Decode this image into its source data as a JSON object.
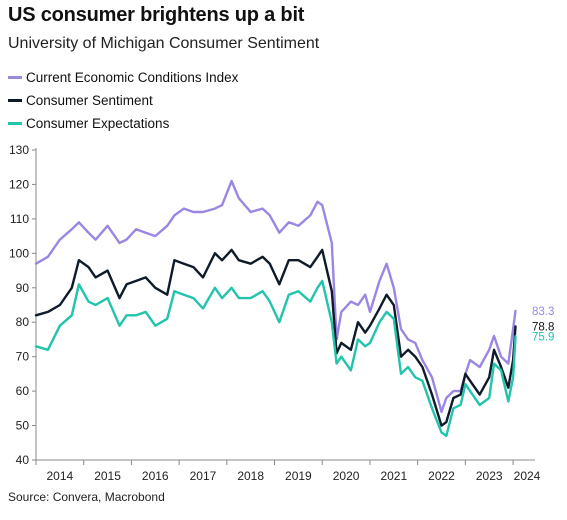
{
  "title": "US consumer brightens up a bit",
  "subtitle": "University of Michigan Consumer Sentiment",
  "source": "Source: Convera, Macrobond",
  "chart_data": {
    "type": "line",
    "title": "US consumer brightens up a bit",
    "subtitle": "University of Michigan Consumer Sentiment",
    "ylim": [
      40,
      130
    ],
    "yticks": [
      40,
      50,
      60,
      70,
      80,
      90,
      100,
      110,
      120,
      130
    ],
    "xlim": [
      2014.0,
      2024.25
    ],
    "xticks": [
      "2014",
      "2015",
      "2016",
      "2017",
      "2018",
      "2019",
      "2020",
      "2021",
      "2022",
      "2023",
      "2024"
    ],
    "grid": false,
    "legend": "top-left",
    "series": [
      {
        "name": "Current Economic Conditions Index",
        "color": "#9b86e3",
        "end_label": "83.3",
        "points": [
          [
            2014.0,
            97
          ],
          [
            2014.25,
            99
          ],
          [
            2014.5,
            104
          ],
          [
            2014.75,
            107
          ],
          [
            2014.9,
            109
          ],
          [
            2015.1,
            106
          ],
          [
            2015.25,
            104
          ],
          [
            2015.5,
            108
          ],
          [
            2015.75,
            103
          ],
          [
            2015.9,
            104
          ],
          [
            2016.1,
            107
          ],
          [
            2016.3,
            106
          ],
          [
            2016.5,
            105
          ],
          [
            2016.75,
            108
          ],
          [
            2016.9,
            111
          ],
          [
            2017.1,
            113
          ],
          [
            2017.3,
            112
          ],
          [
            2017.5,
            112
          ],
          [
            2017.75,
            113
          ],
          [
            2017.9,
            114
          ],
          [
            2018.1,
            121
          ],
          [
            2018.25,
            116
          ],
          [
            2018.5,
            112
          ],
          [
            2018.75,
            113
          ],
          [
            2018.9,
            111
          ],
          [
            2019.1,
            106
          ],
          [
            2019.3,
            109
          ],
          [
            2019.5,
            108
          ],
          [
            2019.75,
            111
          ],
          [
            2019.9,
            115
          ],
          [
            2020.0,
            114
          ],
          [
            2020.2,
            103
          ],
          [
            2020.3,
            75
          ],
          [
            2020.4,
            83
          ],
          [
            2020.6,
            86
          ],
          [
            2020.75,
            85
          ],
          [
            2020.9,
            88
          ],
          [
            2021.0,
            83
          ],
          [
            2021.2,
            92
          ],
          [
            2021.35,
            97
          ],
          [
            2021.5,
            90
          ],
          [
            2021.65,
            78
          ],
          [
            2021.8,
            75
          ],
          [
            2021.95,
            74
          ],
          [
            2022.1,
            69
          ],
          [
            2022.3,
            64
          ],
          [
            2022.5,
            54
          ],
          [
            2022.6,
            58
          ],
          [
            2022.75,
            60
          ],
          [
            2022.9,
            60
          ],
          [
            2023.0,
            65
          ],
          [
            2023.1,
            69
          ],
          [
            2023.3,
            67
          ],
          [
            2023.5,
            72
          ],
          [
            2023.6,
            76
          ],
          [
            2023.75,
            70
          ],
          [
            2023.9,
            68
          ],
          [
            2024.0,
            78
          ],
          [
            2024.05,
            83.3
          ]
        ]
      },
      {
        "name": "Consumer Sentiment",
        "color": "#0d1b2a",
        "end_label": "78.8",
        "points": [
          [
            2014.0,
            82
          ],
          [
            2014.25,
            83
          ],
          [
            2014.5,
            85
          ],
          [
            2014.75,
            90
          ],
          [
            2014.9,
            98
          ],
          [
            2015.1,
            96
          ],
          [
            2015.25,
            93
          ],
          [
            2015.5,
            95
          ],
          [
            2015.75,
            87
          ],
          [
            2015.9,
            91
          ],
          [
            2016.1,
            92
          ],
          [
            2016.3,
            93
          ],
          [
            2016.5,
            90
          ],
          [
            2016.75,
            88
          ],
          [
            2016.9,
            98
          ],
          [
            2017.1,
            97
          ],
          [
            2017.3,
            96
          ],
          [
            2017.5,
            93
          ],
          [
            2017.75,
            100
          ],
          [
            2017.9,
            98
          ],
          [
            2018.1,
            101
          ],
          [
            2018.25,
            98
          ],
          [
            2018.5,
            97
          ],
          [
            2018.75,
            99
          ],
          [
            2018.9,
            97
          ],
          [
            2019.1,
            91
          ],
          [
            2019.3,
            98
          ],
          [
            2019.5,
            98
          ],
          [
            2019.75,
            96
          ],
          [
            2019.9,
            99
          ],
          [
            2020.0,
            101
          ],
          [
            2020.2,
            89
          ],
          [
            2020.3,
            71
          ],
          [
            2020.4,
            74
          ],
          [
            2020.6,
            72
          ],
          [
            2020.75,
            80
          ],
          [
            2020.9,
            77
          ],
          [
            2021.0,
            79
          ],
          [
            2021.2,
            84
          ],
          [
            2021.35,
            88
          ],
          [
            2021.5,
            85
          ],
          [
            2021.65,
            70
          ],
          [
            2021.8,
            72
          ],
          [
            2021.95,
            70
          ],
          [
            2022.1,
            67
          ],
          [
            2022.3,
            59
          ],
          [
            2022.5,
            50
          ],
          [
            2022.6,
            51
          ],
          [
            2022.75,
            58
          ],
          [
            2022.9,
            59
          ],
          [
            2023.0,
            65
          ],
          [
            2023.1,
            63
          ],
          [
            2023.3,
            59
          ],
          [
            2023.5,
            64
          ],
          [
            2023.6,
            72
          ],
          [
            2023.75,
            67
          ],
          [
            2023.9,
            61
          ],
          [
            2024.0,
            69
          ],
          [
            2024.05,
            78.8
          ]
        ]
      },
      {
        "name": "Consumer Expectations",
        "color": "#22c4ac",
        "end_label": "75.9",
        "points": [
          [
            2014.0,
            73
          ],
          [
            2014.25,
            72
          ],
          [
            2014.5,
            79
          ],
          [
            2014.75,
            82
          ],
          [
            2014.9,
            91
          ],
          [
            2015.1,
            86
          ],
          [
            2015.25,
            85
          ],
          [
            2015.5,
            87
          ],
          [
            2015.75,
            79
          ],
          [
            2015.9,
            82
          ],
          [
            2016.1,
            82
          ],
          [
            2016.3,
            83
          ],
          [
            2016.5,
            79
          ],
          [
            2016.75,
            81
          ],
          [
            2016.9,
            89
          ],
          [
            2017.1,
            88
          ],
          [
            2017.3,
            87
          ],
          [
            2017.5,
            84
          ],
          [
            2017.75,
            90
          ],
          [
            2017.9,
            87
          ],
          [
            2018.1,
            90
          ],
          [
            2018.25,
            87
          ],
          [
            2018.5,
            87
          ],
          [
            2018.75,
            89
          ],
          [
            2018.9,
            86
          ],
          [
            2019.1,
            80
          ],
          [
            2019.3,
            88
          ],
          [
            2019.5,
            89
          ],
          [
            2019.75,
            86
          ],
          [
            2019.9,
            90
          ],
          [
            2020.0,
            92
          ],
          [
            2020.2,
            80
          ],
          [
            2020.3,
            68
          ],
          [
            2020.4,
            70
          ],
          [
            2020.6,
            66
          ],
          [
            2020.75,
            75
          ],
          [
            2020.9,
            73
          ],
          [
            2021.0,
            74
          ],
          [
            2021.2,
            80
          ],
          [
            2021.35,
            83
          ],
          [
            2021.5,
            81
          ],
          [
            2021.65,
            65
          ],
          [
            2021.8,
            67
          ],
          [
            2021.95,
            64
          ],
          [
            2022.1,
            63
          ],
          [
            2022.3,
            55
          ],
          [
            2022.5,
            48
          ],
          [
            2022.6,
            47
          ],
          [
            2022.75,
            55
          ],
          [
            2022.9,
            56
          ],
          [
            2023.0,
            62
          ],
          [
            2023.1,
            60
          ],
          [
            2023.3,
            56
          ],
          [
            2023.5,
            58
          ],
          [
            2023.6,
            68
          ],
          [
            2023.75,
            66
          ],
          [
            2023.9,
            57
          ],
          [
            2024.0,
            64
          ],
          [
            2024.05,
            75.9
          ]
        ]
      }
    ]
  }
}
